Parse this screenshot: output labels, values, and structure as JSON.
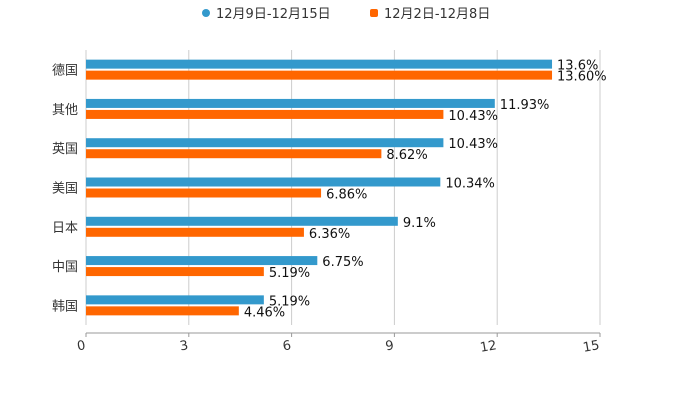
{
  "chart_data": {
    "type": "bar",
    "orientation": "horizontal",
    "title": "",
    "xlabel": "",
    "ylabel": "",
    "xlim": [
      0,
      15
    ],
    "xticks": [
      "0",
      "3",
      "6",
      "9",
      "12",
      "15"
    ],
    "grid": true,
    "legend_position": "top-center",
    "categories": [
      "德国",
      "其他",
      "英国",
      "美国",
      "日本",
      "中国",
      "韩国"
    ],
    "series": [
      {
        "name": "12月9日-12月15日",
        "color": "#3399cc",
        "values": [
          13.6,
          11.93,
          10.43,
          10.34,
          9.1,
          6.75,
          5.19
        ],
        "labels": [
          "13.6%",
          "11.93%",
          "10.43%",
          "10.34%",
          "9.1%",
          "6.75%",
          "5.19%"
        ]
      },
      {
        "name": "12月2日-12月8日",
        "color": "#ff6600",
        "values": [
          13.6,
          10.43,
          8.62,
          6.86,
          6.36,
          5.19,
          4.46
        ],
        "labels": [
          "13.60%",
          "10.43%",
          "8.62%",
          "6.86%",
          "6.36%",
          "5.19%",
          "4.46%"
        ]
      }
    ]
  }
}
